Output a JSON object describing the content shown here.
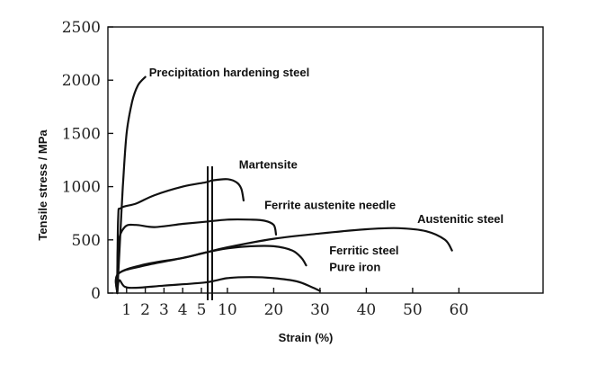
{
  "chart_data": {
    "type": "line",
    "ylabel": "Tensile stress / MPa",
    "xlabel": "Strain (%)",
    "ylim": [
      0,
      2500
    ],
    "yticks": [
      "0",
      "500",
      "1000",
      "1500",
      "2000",
      "2500"
    ],
    "xaxis_break": "two parallel vertical lines between 5 and 10; left part 0-5 expanded scale, right part 5-65 compressed",
    "xticks_left": [
      "1",
      "2",
      "3",
      "4",
      "5"
    ],
    "xticks_right": [
      "10",
      "20",
      "30",
      "40",
      "50",
      "60"
    ],
    "grid": false,
    "series": [
      {
        "name": "Precipitation hardening steel",
        "points": [
          [
            0.5,
            0
          ],
          [
            0.65,
            500
          ],
          [
            0.8,
            1000
          ],
          [
            1.0,
            1500
          ],
          [
            1.3,
            1800
          ],
          [
            1.6,
            1950
          ],
          [
            2.0,
            2030
          ]
        ]
      },
      {
        "name": "Martensite",
        "points": [
          [
            0.5,
            0
          ],
          [
            0.55,
            700
          ],
          [
            0.7,
            800
          ],
          [
            1.5,
            840
          ],
          [
            2.5,
            920
          ],
          [
            4.0,
            1000
          ],
          [
            5.2,
            1040
          ],
          [
            7,
            1060
          ],
          [
            10,
            1070
          ],
          [
            12,
            1040
          ],
          [
            13,
            980
          ],
          [
            13.5,
            870
          ]
        ]
      },
      {
        "name": "Ferrite austenite needle",
        "points": [
          [
            0.5,
            0
          ],
          [
            0.55,
            450
          ],
          [
            0.9,
            620
          ],
          [
            1.5,
            640
          ],
          [
            2.5,
            620
          ],
          [
            4.0,
            650
          ],
          [
            5.2,
            670
          ],
          [
            10,
            690
          ],
          [
            15,
            690
          ],
          [
            18,
            680
          ],
          [
            20,
            640
          ],
          [
            20.5,
            550
          ]
        ]
      },
      {
        "name": "Austenitic steel",
        "points": [
          [
            0.5,
            0
          ],
          [
            0.55,
            180
          ],
          [
            2.0,
            270
          ],
          [
            4.0,
            330
          ],
          [
            5.2,
            380
          ],
          [
            10,
            430
          ],
          [
            20,
            510
          ],
          [
            30,
            560
          ],
          [
            40,
            600
          ],
          [
            47,
            610
          ],
          [
            53,
            580
          ],
          [
            57,
            500
          ],
          [
            58.5,
            400
          ]
        ]
      },
      {
        "name": "Ferritic steel",
        "points": [
          [
            0.5,
            0
          ],
          [
            0.55,
            180
          ],
          [
            2.0,
            260
          ],
          [
            4.0,
            330
          ],
          [
            5.2,
            380
          ],
          [
            10,
            420
          ],
          [
            15,
            440
          ],
          [
            20,
            440
          ],
          [
            24,
            400
          ],
          [
            26,
            330
          ],
          [
            27,
            260
          ]
        ]
      },
      {
        "name": "Pure iron",
        "points": [
          [
            0.5,
            0
          ],
          [
            0.6,
            120
          ],
          [
            0.9,
            60
          ],
          [
            1.5,
            50
          ],
          [
            3.0,
            70
          ],
          [
            5.2,
            100
          ],
          [
            10,
            140
          ],
          [
            15,
            150
          ],
          [
            20,
            140
          ],
          [
            25,
            110
          ],
          [
            28,
            60
          ],
          [
            30,
            20
          ]
        ]
      }
    ],
    "labels": [
      {
        "text": "Precipitation hardening steel",
        "x": 2.2,
        "y": 2035
      },
      {
        "text": "Martensite",
        "x": 12.5,
        "y": 1170
      },
      {
        "text": "Ferrite austenite needle",
        "x": 18,
        "y": 790
      },
      {
        "text": "Austenitic steel",
        "x": 51,
        "y": 660
      },
      {
        "text": "Ferritic steel",
        "x": 32,
        "y": 365
      },
      {
        "text": "Pure iron",
        "x": 32,
        "y": 205
      }
    ]
  }
}
